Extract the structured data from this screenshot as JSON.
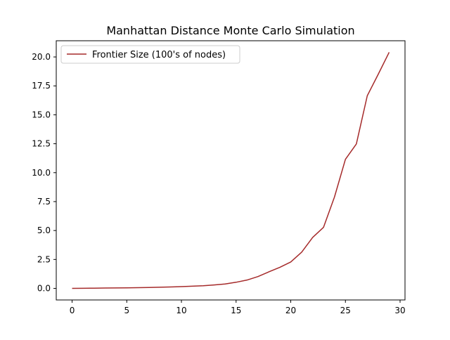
{
  "chart_data": {
    "type": "line",
    "title": "Manhattan Distance Monte Carlo Simulation",
    "xlabel": "",
    "ylabel": "",
    "xlim": [
      -1.45,
      30.45
    ],
    "ylim": [
      -1.0,
      21.4
    ],
    "xticks": [
      0,
      5,
      10,
      15,
      20,
      25,
      30
    ],
    "xtick_labels": [
      "0",
      "5",
      "10",
      "15",
      "20",
      "25",
      "30"
    ],
    "yticks": [
      0.0,
      2.5,
      5.0,
      7.5,
      10.0,
      12.5,
      15.0,
      17.5,
      20.0
    ],
    "ytick_labels": [
      "0.0",
      "2.5",
      "5.0",
      "7.5",
      "10.0",
      "12.5",
      "15.0",
      "17.5",
      "20.0"
    ],
    "grid": false,
    "legend_position": "top-left",
    "series": [
      {
        "name": "Frontier Size (100's of nodes)",
        "color": "#a52a2a",
        "x": [
          0,
          1,
          2,
          3,
          4,
          5,
          6,
          7,
          8,
          9,
          10,
          11,
          12,
          13,
          14,
          15,
          16,
          17,
          18,
          19,
          20,
          21,
          22,
          23,
          24,
          25,
          26,
          27,
          28,
          29
        ],
        "values": [
          0.0,
          0.01,
          0.02,
          0.03,
          0.04,
          0.05,
          0.06,
          0.08,
          0.1,
          0.12,
          0.15,
          0.19,
          0.23,
          0.3,
          0.38,
          0.53,
          0.72,
          1.02,
          1.43,
          1.82,
          2.28,
          3.13,
          4.4,
          5.28,
          7.9,
          11.15,
          12.48,
          16.65,
          18.5,
          20.4
        ]
      }
    ]
  }
}
